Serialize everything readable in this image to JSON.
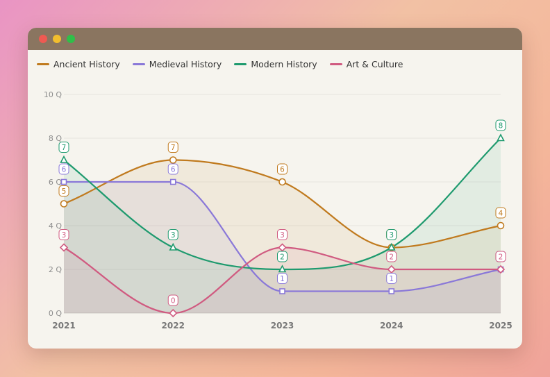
{
  "window": {
    "controls": {
      "close": "close-icon",
      "minimize": "minimize-icon",
      "maximize": "maximize-icon"
    }
  },
  "chart_data": {
    "type": "line",
    "title": "",
    "xlabel": "",
    "ylabel": "",
    "categories": [
      "2021",
      "2022",
      "2023",
      "2024",
      "2025"
    ],
    "y_ticks": [
      "0 Q",
      "2 Q",
      "4 Q",
      "6 Q",
      "8 Q",
      "10 Q"
    ],
    "ylim": [
      0,
      10
    ],
    "grid": true,
    "curve": "smooth",
    "area_fill": true,
    "data_labels": true,
    "legend_position": "top-left",
    "series": [
      {
        "name": "Ancient History",
        "values": [
          5,
          7,
          6,
          3,
          4
        ],
        "color": "#c07a1e",
        "marker": "circle"
      },
      {
        "name": "Medieval History",
        "values": [
          6,
          6,
          1,
          1,
          2
        ],
        "color": "#8a78d8",
        "marker": "square"
      },
      {
        "name": "Modern History",
        "values": [
          7,
          3,
          2,
          3,
          8
        ],
        "color": "#1e9a6e",
        "marker": "triangle"
      },
      {
        "name": "Art & Culture",
        "values": [
          3,
          0,
          3,
          2,
          2
        ],
        "color": "#d05a80",
        "marker": "diamond"
      }
    ]
  }
}
